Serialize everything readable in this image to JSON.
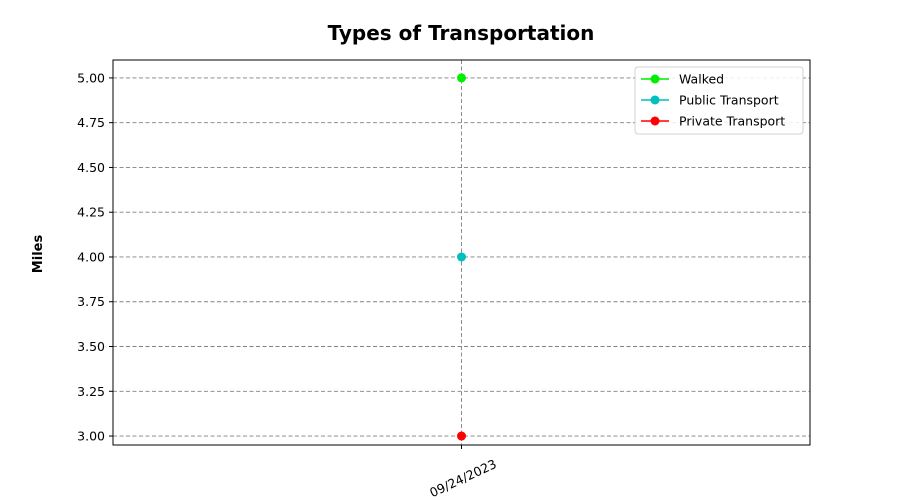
{
  "chart_data": {
    "type": "line",
    "title": "Types of Transportation",
    "xlabel": "",
    "ylabel": "Miles",
    "categories": [
      "09/24/2023"
    ],
    "ylim": [
      2.95,
      5.1
    ],
    "yticks": [
      3.0,
      3.25,
      3.5,
      3.75,
      4.0,
      4.25,
      4.5,
      4.75,
      5.0
    ],
    "ytick_labels": [
      "3.00",
      "3.25",
      "3.50",
      "3.75",
      "4.00",
      "4.25",
      "4.50",
      "4.75",
      "5.00"
    ],
    "grid": true,
    "legend_position": "top-right",
    "series": [
      {
        "name": "Walked",
        "values": [
          5.0
        ],
        "color": "#00ee00"
      },
      {
        "name": "Public Transport",
        "values": [
          4.0
        ],
        "color": "#00bfbf"
      },
      {
        "name": "Private Transport",
        "values": [
          3.0
        ],
        "color": "#ff0000"
      }
    ]
  }
}
